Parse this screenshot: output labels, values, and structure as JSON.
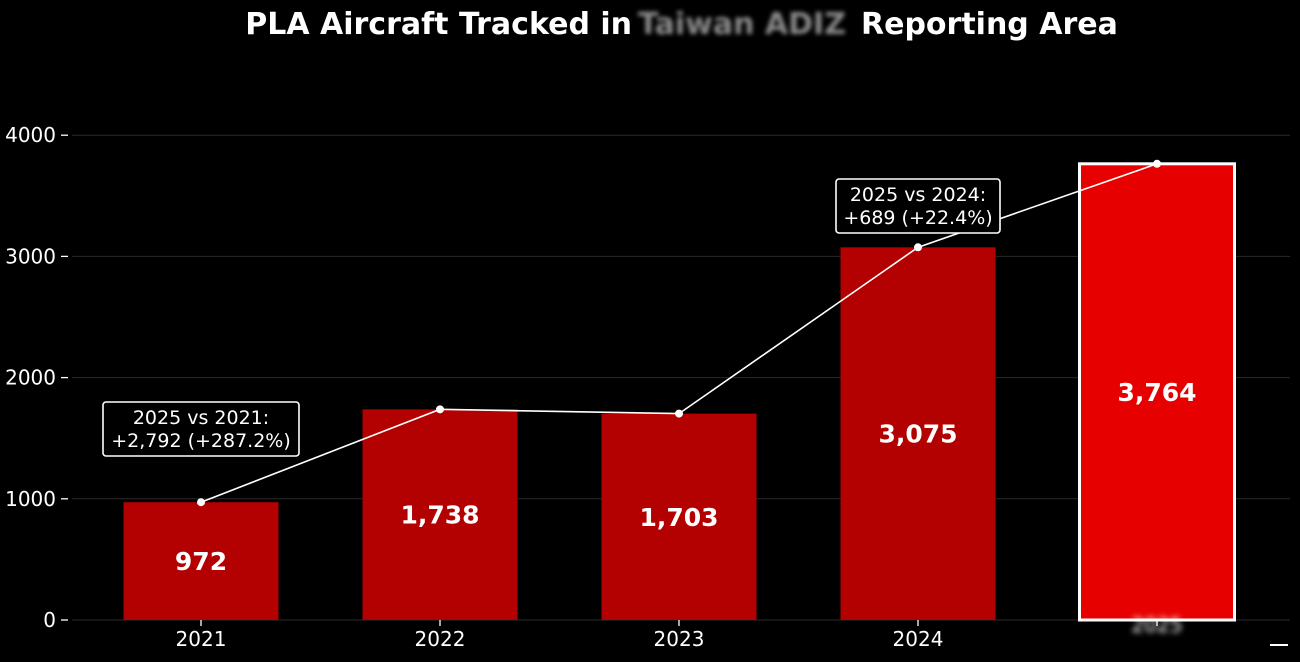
{
  "chart_data": {
    "type": "bar",
    "title": "PLA Aircraft Tracked in Taiwan ADIZ Reporting Area",
    "title_parts": [
      "PLA Aircraft Tracked in",
      "Taiwan ADIZ",
      "Reporting Area"
    ],
    "categories": [
      "2021",
      "2022",
      "2023",
      "2024",
      "2025"
    ],
    "values": [
      972,
      1738,
      1703,
      3075,
      3764
    ],
    "value_labels": [
      "972",
      "1,738",
      "1,703",
      "3,075",
      "3,764"
    ],
    "highlight_index": 4,
    "overlay_line": {
      "type": "line",
      "values": [
        972,
        1738,
        1703,
        3075,
        3764
      ]
    },
    "yticks": [
      0,
      1000,
      2000,
      3000,
      4000
    ],
    "ytick_labels": [
      "0",
      "1000",
      "2000",
      "3000",
      "4000"
    ],
    "ylim": [
      0,
      4400
    ],
    "xlabel": "",
    "ylabel": "",
    "grid": true,
    "colors": {
      "background": "#000000",
      "bar": "#b30000",
      "bar_highlight": "#e60000",
      "highlight_border": "#ffffff",
      "line": "#ffffff",
      "gridline": "#2a2a2a",
      "text": "#ffffff"
    },
    "annotations": [
      {
        "anchor_index": 0,
        "lines": [
          "2025 vs 2021:",
          "+2,792 (+287.2%)"
        ]
      },
      {
        "anchor_index": 3,
        "lines": [
          "2025 vs 2024:",
          "+689 (+22.4%)"
        ]
      }
    ]
  }
}
